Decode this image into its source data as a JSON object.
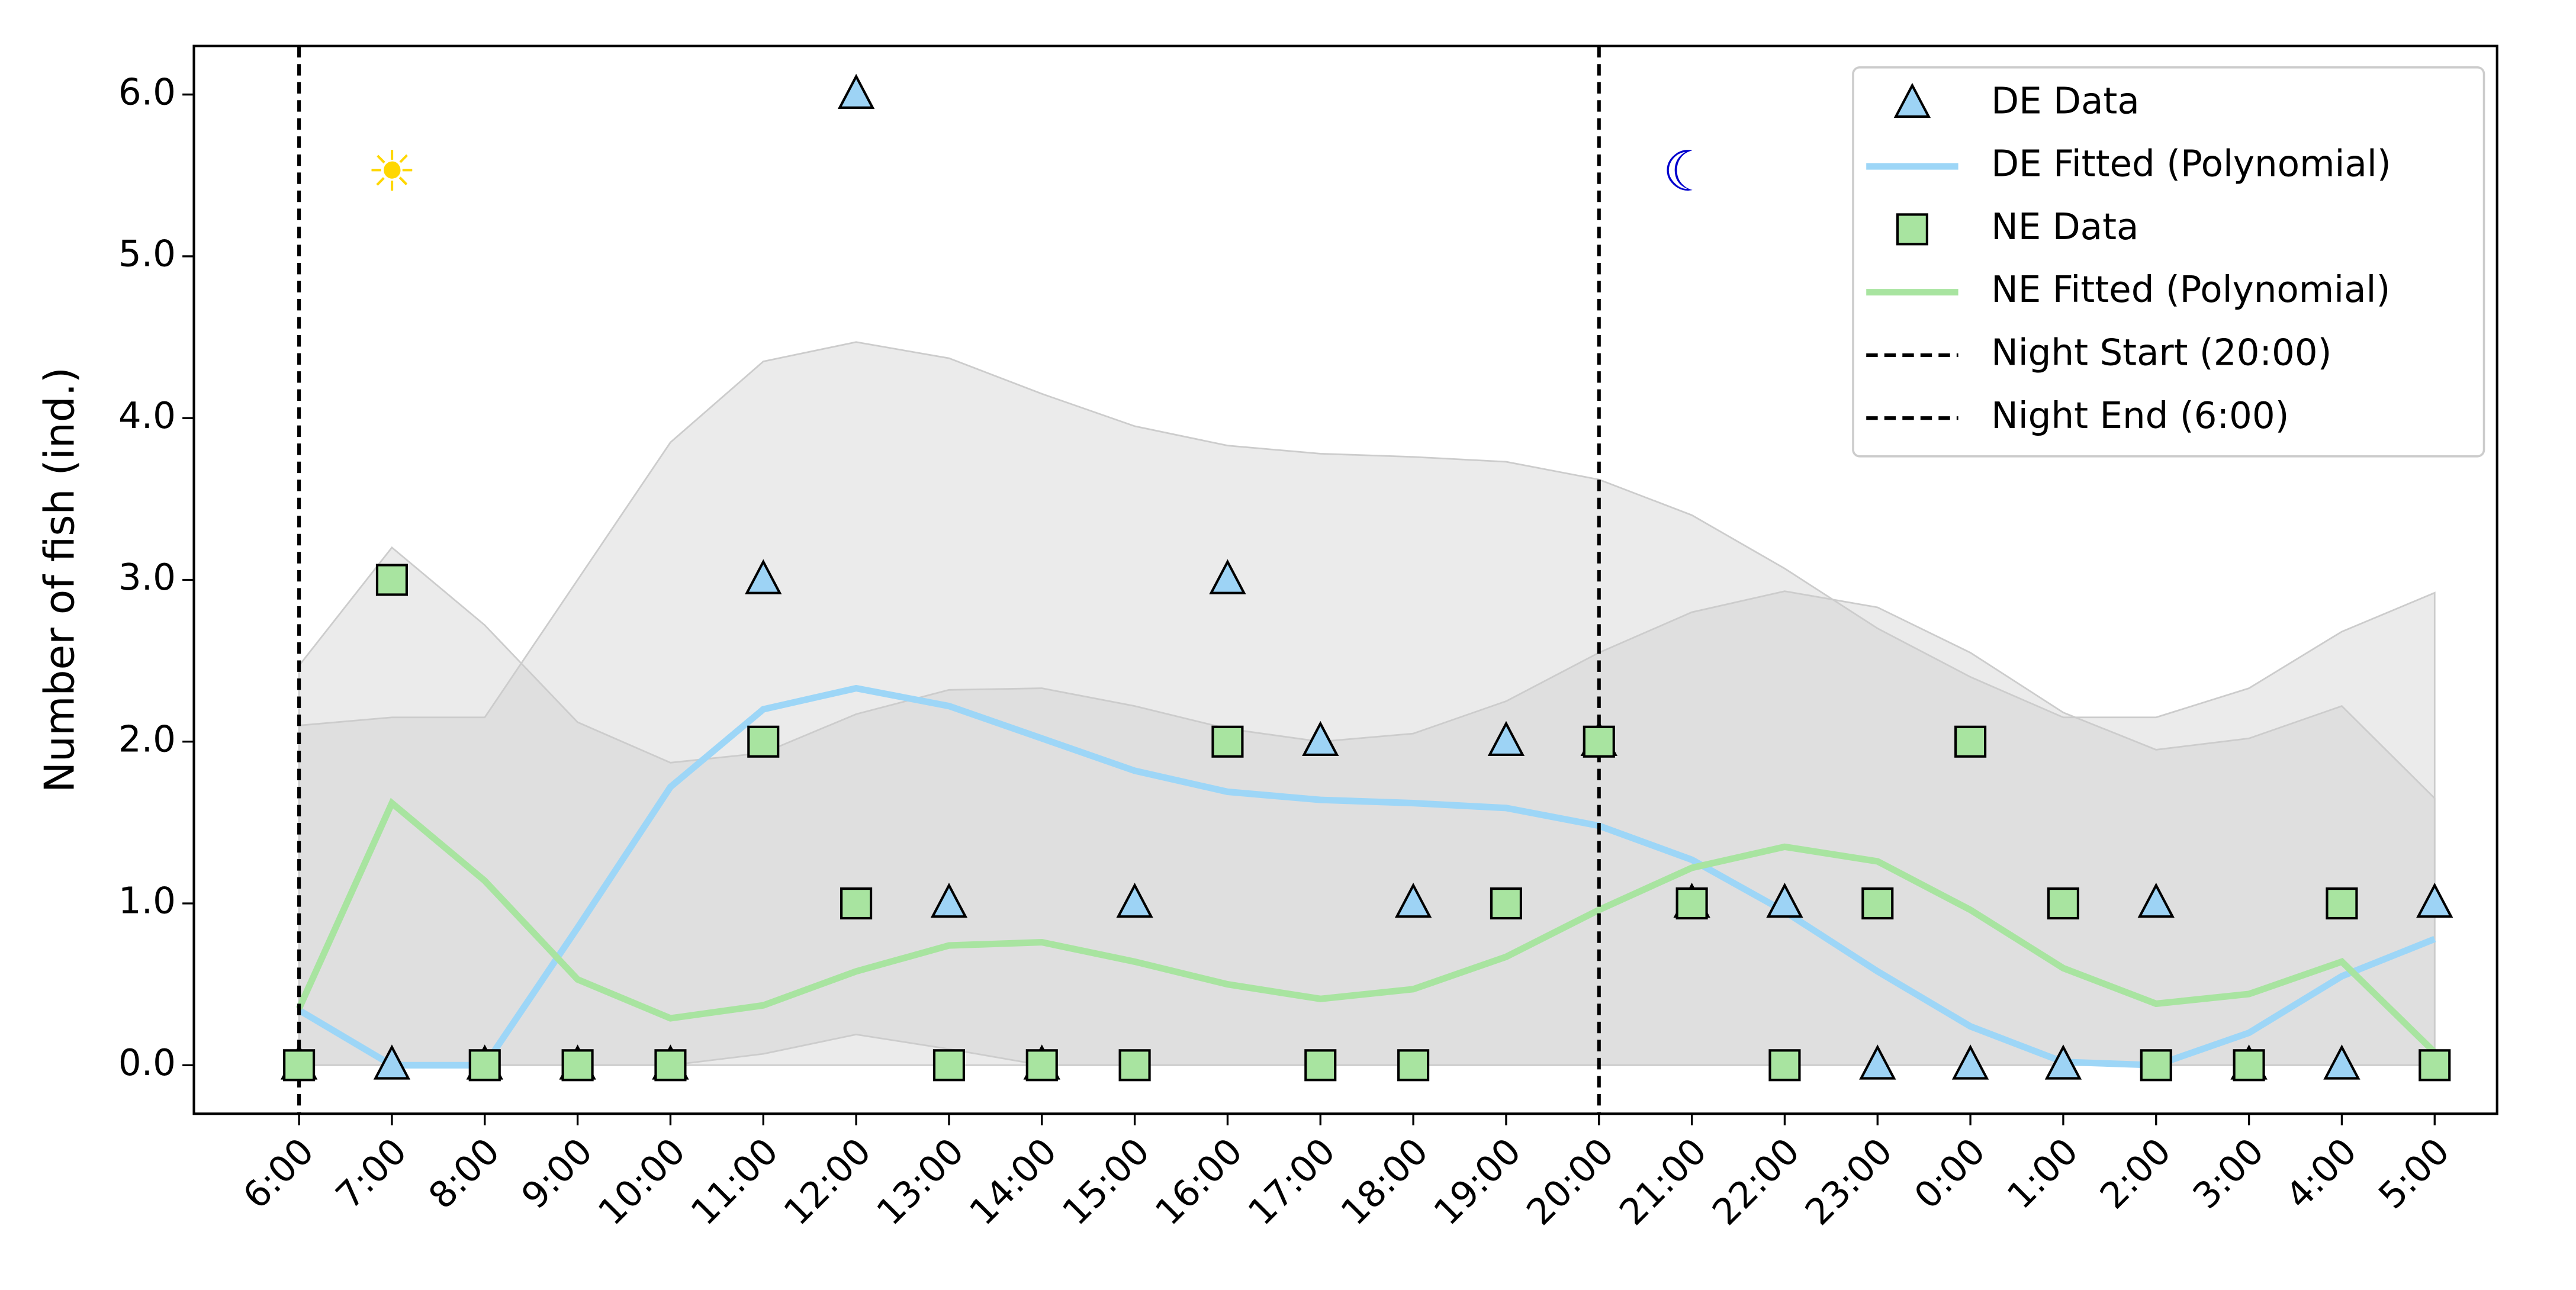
{
  "chart_data": {
    "type": "line",
    "y_label": "Number of fish (ind.)",
    "categories": [
      "6:00",
      "7:00",
      "8:00",
      "9:00",
      "10:00",
      "11:00",
      "12:00",
      "13:00",
      "14:00",
      "15:00",
      "16:00",
      "17:00",
      "18:00",
      "19:00",
      "20:00",
      "21:00",
      "22:00",
      "23:00",
      "0:00",
      "1:00",
      "2:00",
      "3:00",
      "4:00",
      "5:00"
    ],
    "ylim": [
      -0.3,
      6.3
    ],
    "yticks": [
      {
        "value": 0,
        "label": "0.0"
      },
      {
        "value": 1,
        "label": "1.0"
      },
      {
        "value": 2,
        "label": "2.0"
      },
      {
        "value": 3,
        "label": "3.0"
      },
      {
        "value": 4,
        "label": "4.0"
      },
      {
        "value": 5,
        "label": "5.0"
      },
      {
        "value": 6,
        "label": "6.0"
      }
    ],
    "bands": [
      {
        "color": "#cccccc",
        "upper": [
          2.1,
          2.15,
          2.15,
          3.0,
          3.85,
          4.35,
          4.47,
          4.37,
          4.15,
          3.95,
          3.83,
          3.78,
          3.76,
          3.73,
          3.62,
          3.4,
          3.07,
          2.7,
          2.4,
          2.15,
          2.15,
          2.33,
          2.68,
          2.92
        ],
        "lower": [
          0,
          0,
          0,
          0,
          0,
          0.07,
          0.19,
          0.1,
          0,
          0,
          0,
          0,
          0,
          0,
          0,
          0,
          0,
          0,
          0,
          0,
          0,
          0,
          0,
          0
        ]
      },
      {
        "color": "#cccccc",
        "upper": [
          2.47,
          3.2,
          2.72,
          2.12,
          1.87,
          1.93,
          2.17,
          2.32,
          2.33,
          2.22,
          2.08,
          2.0,
          2.05,
          2.25,
          2.55,
          2.8,
          2.93,
          2.83,
          2.55,
          2.18,
          1.95,
          2.02,
          2.22,
          1.65
        ],
        "lower": [
          0,
          0,
          0,
          0,
          0,
          0,
          0,
          0,
          0,
          0,
          0,
          0,
          0,
          0,
          0,
          0,
          0,
          0,
          0,
          0,
          0,
          0,
          0,
          0
        ]
      }
    ],
    "series": [
      {
        "name": "DE Data",
        "kind": "scatter",
        "marker": "triangle",
        "color": "#9dd3f5",
        "values": [
          0,
          0,
          0,
          0,
          0,
          3,
          6,
          1,
          0,
          1,
          3,
          2,
          1,
          2,
          2,
          1,
          1,
          0,
          0,
          0,
          1,
          0,
          0,
          1
        ]
      },
      {
        "name": "DE Fitted (Polynomial)",
        "kind": "line",
        "color": "#9dd6f7",
        "values": [
          0.34,
          0,
          0,
          0.85,
          1.72,
          2.2,
          2.33,
          2.22,
          2.02,
          1.82,
          1.69,
          1.64,
          1.62,
          1.59,
          1.48,
          1.27,
          0.95,
          0.58,
          0.24,
          0.02,
          0,
          0.2,
          0.55,
          0.78
        ]
      },
      {
        "name": "NE Data",
        "kind": "scatter",
        "marker": "square",
        "color": "#a8e4a0",
        "values": [
          0,
          3,
          0,
          0,
          0,
          2,
          1,
          0,
          0,
          0,
          2,
          0,
          0,
          1,
          2,
          1,
          0,
          1,
          2,
          1,
          0,
          0,
          1,
          0
        ]
      },
      {
        "name": "NE Fitted (Polynomial)",
        "kind": "line",
        "color": "#a8e4a0",
        "values": [
          0.35,
          1.62,
          1.14,
          0.53,
          0.29,
          0.37,
          0.58,
          0.74,
          0.76,
          0.64,
          0.5,
          0.41,
          0.47,
          0.67,
          0.96,
          1.22,
          1.35,
          1.26,
          0.96,
          0.6,
          0.38,
          0.44,
          0.64,
          0.08
        ]
      }
    ],
    "vlines": [
      {
        "name": "Night Start (20:00)",
        "x": "20:00",
        "color": "#000000"
      },
      {
        "name": "Night End (6:00)",
        "x": "6:00",
        "color": "#000000"
      }
    ],
    "annotations": [
      {
        "text": "☀",
        "color": "#ffd700"
      },
      {
        "text": "☾",
        "color": "#0000cd"
      }
    ],
    "legend": "upper right"
  }
}
